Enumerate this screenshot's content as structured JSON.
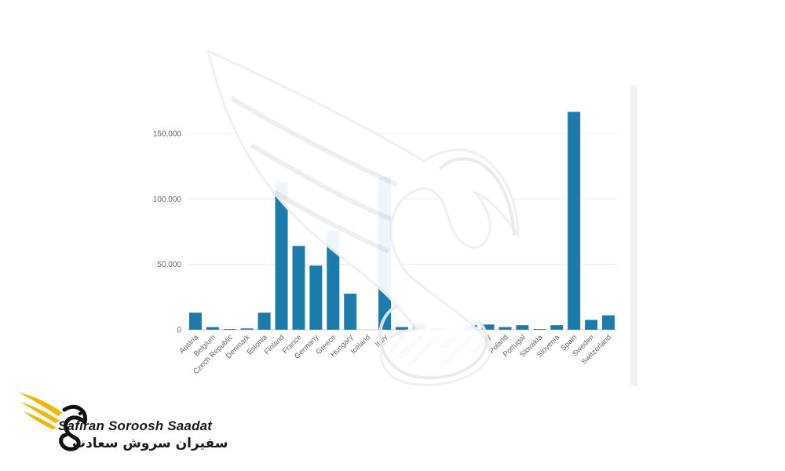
{
  "chart_data": {
    "type": "bar",
    "categories": [
      "Austria",
      "Belgium",
      "Czech Republic",
      "Denmark",
      "Estonia",
      "Finland",
      "France",
      "Germany",
      "Greece",
      "Hungary",
      "Iceland",
      "Italy",
      "Latvia",
      "Lithuania",
      "Luxembourg",
      "Malta",
      "Netherlands",
      "Norway",
      "Poland",
      "Portugal",
      "Slovakia",
      "Slovenia",
      "Spain",
      "Sweden",
      "Switzerland"
    ],
    "values": [
      13000,
      2000,
      400,
      1000,
      13000,
      112500,
      64000,
      49000,
      75500,
      27500,
      0,
      117000,
      2000,
      4500,
      1000,
      0,
      3500,
      4000,
      2000,
      3500,
      300,
      3500,
      166500,
      7500,
      11000
    ],
    "y_ticks": [
      0,
      50000,
      100000,
      150000
    ],
    "y_tick_labels": [
      "0",
      "50,000",
      "100,000",
      "150,000"
    ],
    "ylim": [
      0,
      180000
    ],
    "grid": true,
    "bar_color": "#1c7bab",
    "title": "",
    "xlabel": "",
    "ylabel": ""
  },
  "brand": {
    "name_en": "Safiran Soroosh Saadat",
    "name_fa": "سفیران سروش سعادت",
    "accent_color": "#f2b705",
    "icon": "swan-wing-logo"
  }
}
